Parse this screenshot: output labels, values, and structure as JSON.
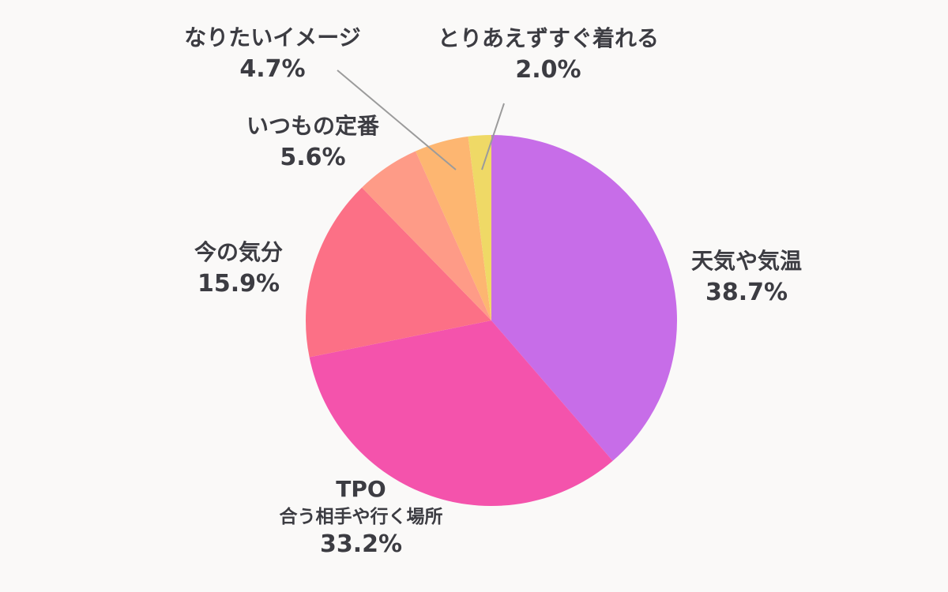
{
  "background_color": "#FAF9F8",
  "text_color": "#3C3C42",
  "leader_line_color": "#9B9B9B",
  "chart_data": {
    "type": "pie",
    "title": "",
    "start_angle_deg": 0,
    "direction": "clockwise",
    "legend_position": "outside-labels",
    "slices": [
      {
        "label": "天気や気温",
        "value": 38.7,
        "display": "38.7%",
        "color": "#C76DE8"
      },
      {
        "label": "TPO",
        "sublabel": "合う相手や行く場所",
        "value": 33.2,
        "display": "33.2%",
        "color": "#F453AC"
      },
      {
        "label": "今の気分",
        "value": 15.9,
        "display": "15.9%",
        "color": "#FC7086"
      },
      {
        "label": "いつもの定番",
        "value": 5.6,
        "display": "5.6%",
        "color": "#FE9B87"
      },
      {
        "label": "なりたいイメージ",
        "value": 4.7,
        "display": "4.7%",
        "color": "#FDB671"
      },
      {
        "label": "とりあえずすぐ着れる",
        "value": 2.0,
        "display": "2.0%",
        "color": "#EFD966"
      }
    ]
  }
}
